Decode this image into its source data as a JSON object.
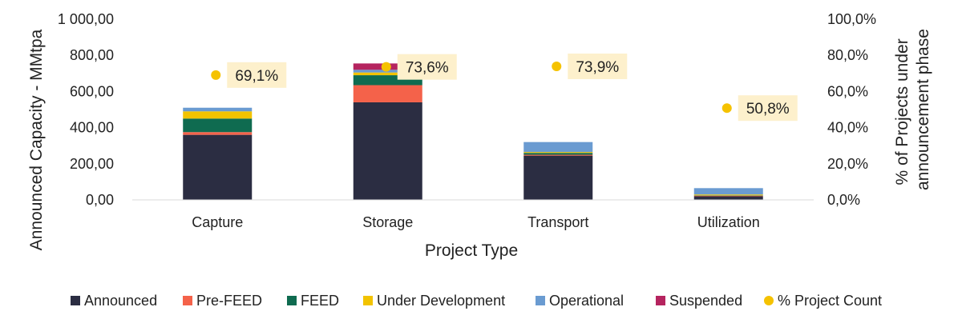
{
  "chart_data": {
    "type": "bar",
    "subtype": "stacked bar with secondary-axis markers",
    "categories": [
      "Capture",
      "Storage",
      "Transport",
      "Utilization"
    ],
    "series": [
      {
        "name": "Announced",
        "color": "#2b2d42",
        "values": [
          360,
          540,
          245,
          20
        ]
      },
      {
        "name": "Pre-FEED",
        "color": "#f4624a",
        "values": [
          15,
          95,
          5,
          3
        ]
      },
      {
        "name": "FEED",
        "color": "#0f6b50",
        "values": [
          75,
          55,
          10,
          2
        ]
      },
      {
        "name": "Under Development",
        "color": "#f2c300",
        "values": [
          40,
          15,
          5,
          5
        ]
      },
      {
        "name": "Operational",
        "color": "#6a9bd1",
        "values": [
          20,
          15,
          55,
          35
        ]
      },
      {
        "name": "Suspended",
        "color": "#b5245f",
        "values": [
          0,
          35,
          0,
          0
        ]
      }
    ],
    "line_series": {
      "name": "% Project Count",
      "color": "#f5c200",
      "values": [
        69.1,
        73.6,
        73.9,
        50.8
      ],
      "labels": [
        "69,1%",
        "73,6%",
        "73,9%",
        "50,8%"
      ]
    },
    "xlabel": "Project Type",
    "ylabel": "Announced Capacity - MMtpa",
    "y2label_lines": [
      "% of Projects under",
      "announcement phase"
    ],
    "ylim": [
      0,
      1000
    ],
    "y2lim": [
      0,
      100
    ],
    "yticks": [
      "0,00",
      "200,00",
      "400,00",
      "600,00",
      "800,00",
      "1 000,00"
    ],
    "y2ticks": [
      "0,0%",
      "20,0%",
      "40,0%",
      "60,0%",
      "80,0%",
      "100,0%"
    ],
    "legend_position": "bottom",
    "grid": false,
    "label_background": "#fdf0cc"
  }
}
